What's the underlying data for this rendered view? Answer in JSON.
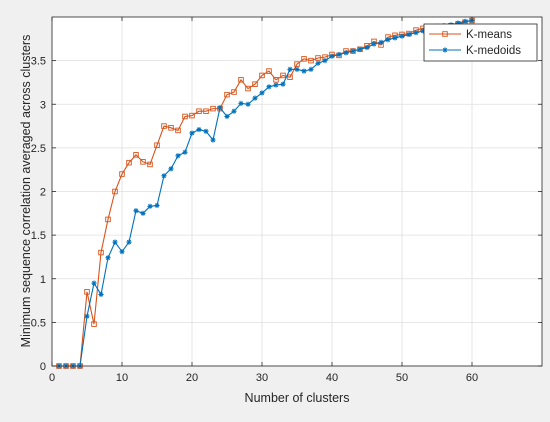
{
  "chart_data": {
    "type": "line",
    "title": "",
    "xlabel": "Number of clusters",
    "ylabel": "Minimum sequence correlation averaged across clusters",
    "xlim": [
      0,
      70
    ],
    "ylim": [
      0,
      4
    ],
    "xticks": [
      0,
      10,
      20,
      30,
      40,
      50,
      60
    ],
    "yticks": [
      0,
      0.5,
      1,
      1.5,
      2,
      2.5,
      3,
      3.5
    ],
    "xtick_labels": [
      "0",
      "10",
      "20",
      "30",
      "40",
      "50",
      "60"
    ],
    "ytick_labels": [
      "0",
      "0.5",
      "1",
      "1.5",
      "2",
      "2.5",
      "3",
      "3.5"
    ],
    "grid": true,
    "legend_position": "top-right",
    "x": [
      1,
      2,
      3,
      4,
      5,
      6,
      7,
      8,
      9,
      10,
      11,
      12,
      13,
      14,
      15,
      16,
      17,
      18,
      19,
      20,
      21,
      22,
      23,
      24,
      25,
      26,
      27,
      28,
      29,
      30,
      31,
      32,
      33,
      34,
      35,
      36,
      37,
      38,
      39,
      40,
      41,
      42,
      43,
      44,
      45,
      46,
      47,
      48,
      49,
      50,
      51,
      52,
      53,
      54,
      55,
      56,
      57,
      58,
      59,
      60
    ],
    "series": [
      {
        "name": "K-means",
        "color": "#d95319",
        "marker": "square",
        "values": [
          0,
          0,
          0,
          0,
          0.85,
          0.48,
          1.3,
          1.68,
          2.0,
          2.2,
          2.33,
          2.42,
          2.34,
          2.31,
          2.53,
          2.75,
          2.73,
          2.7,
          2.86,
          2.87,
          2.92,
          2.92,
          2.95,
          2.95,
          3.11,
          3.14,
          3.28,
          3.18,
          3.23,
          3.33,
          3.38,
          3.28,
          3.33,
          3.31,
          3.46,
          3.52,
          3.5,
          3.53,
          3.54,
          3.57,
          3.56,
          3.61,
          3.61,
          3.63,
          3.67,
          3.72,
          3.68,
          3.77,
          3.79,
          3.8,
          3.81,
          3.85,
          3.87,
          3.88,
          3.89,
          3.89,
          3.9,
          3.92,
          3.94,
          3.96
        ]
      },
      {
        "name": "K-medoids",
        "color": "#0072bd",
        "marker": "asterisk",
        "values": [
          0,
          0,
          0,
          0,
          0.57,
          0.95,
          0.82,
          1.24,
          1.42,
          1.31,
          1.42,
          1.78,
          1.75,
          1.83,
          1.84,
          2.18,
          2.26,
          2.41,
          2.45,
          2.67,
          2.71,
          2.69,
          2.59,
          2.96,
          2.86,
          2.92,
          3.01,
          3.0,
          3.07,
          3.13,
          3.2,
          3.22,
          3.23,
          3.4,
          3.4,
          3.38,
          3.4,
          3.47,
          3.5,
          3.55,
          3.57,
          3.59,
          3.61,
          3.63,
          3.65,
          3.69,
          3.71,
          3.74,
          3.76,
          3.78,
          3.8,
          3.82,
          3.84,
          3.86,
          3.88,
          3.9,
          3.91,
          3.93,
          3.95,
          3.96
        ]
      }
    ]
  }
}
